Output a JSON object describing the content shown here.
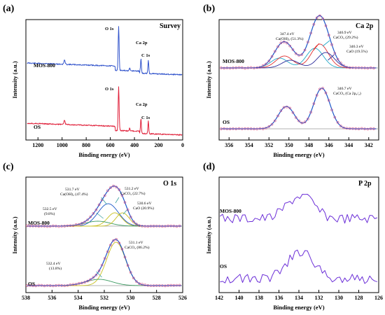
{
  "panels": [
    {
      "letter": "(a)",
      "title": "Survey",
      "xlabel": "Binding energy (eV)",
      "ylabel": "Intensity (a.u.)",
      "peak_labels": [
        "O 1s",
        "Ca 2p",
        "C 1s",
        "O 1s",
        "Ca 2p",
        "C 1s"
      ],
      "series_labels": [
        "MOS-800",
        "OS"
      ]
    },
    {
      "letter": "(b)",
      "title": "Ca 2p",
      "xlabel": "Binding energy (eV)",
      "ylabel": "Intensity (a.u.)",
      "annotations": [
        "347.4 eV",
        "Ca(OH)₂ (51.3%)",
        "346.9 eV",
        "CaCO₃ (29.2%)",
        "346.3 eV",
        "CaO (19.5%)",
        "346.7 eV",
        "CaCO₃ (Ca 2p₃/₂)"
      ],
      "series_labels": [
        "MOS-800",
        "OS"
      ]
    },
    {
      "letter": "(c)",
      "title": "O 1s",
      "xlabel": "Binding energy (eV)",
      "ylabel": "Intensity (a.u.)",
      "annotations": [
        "531.7 eV",
        "Ca(OH)₂ (47.4%)",
        "531.2 eV",
        "CaCO₃ (22.7%)",
        "532.5 eV",
        "(9.8%)",
        "530.6 eV",
        "CaO (20.9%)",
        "531.1 eV",
        "CaCO₃ (86.2%)",
        "532.4 eV",
        "(13.8%)"
      ],
      "series_labels": [
        "MOS-800",
        "OS"
      ]
    },
    {
      "letter": "(d)",
      "title": "P 2p",
      "xlabel": "Binding energy (eV)",
      "ylabel": "Intensity (a.u.)",
      "series_labels": [
        "MOS-800",
        "OS"
      ]
    }
  ],
  "colors": {
    "survey_mos": "#3355cc",
    "survey_os": "#e0203a",
    "raw_points": "#e05a8a",
    "envelope": "#1a56c8",
    "baseline": "#9a9a9a",
    "ca_oh": "#20a8c8",
    "caco3": "#e03030",
    "cao": "#2c2c9a",
    "o_extra": "#3a9a60",
    "o_caco3": "#c8c020",
    "p2p": "#6c2fd8"
  },
  "chart_data": [
    {
      "type": "line",
      "panel": "(a)",
      "title": "Survey",
      "xlabel": "Binding energy (eV)",
      "ylabel": "Intensity (a.u.)",
      "xlim": [
        1300,
        0
      ],
      "xticks": [
        1200,
        1000,
        800,
        600,
        400,
        200,
        0
      ],
      "series": [
        {
          "name": "MOS-800",
          "peaks_eV": [
            531,
            347,
            285
          ]
        },
        {
          "name": "OS",
          "peaks_eV": [
            531,
            347,
            285
          ]
        }
      ]
    },
    {
      "type": "line",
      "panel": "(b)",
      "title": "Ca 2p",
      "xlabel": "Binding energy (eV)",
      "ylabel": "Intensity (a.u.)",
      "xlim": [
        357,
        341
      ],
      "xticks": [
        356,
        354,
        352,
        350,
        348,
        346,
        344,
        342
      ],
      "series": [
        {
          "name": "MOS-800",
          "components": [
            {
              "label": "Ca(OH)2",
              "center_eV": 347.4,
              "percent": 51.3
            },
            {
              "label": "CaCO3",
              "center_eV": 346.9,
              "percent": 29.2
            },
            {
              "label": "CaO",
              "center_eV": 346.3,
              "percent": 19.5
            }
          ]
        },
        {
          "name": "OS",
          "components": [
            {
              "label": "CaCO3 (Ca 2p3/2)",
              "center_eV": 346.7
            }
          ]
        }
      ]
    },
    {
      "type": "line",
      "panel": "(c)",
      "title": "O 1s",
      "xlabel": "Binding energy (eV)",
      "ylabel": "Intensity (a.u.)",
      "xlim": [
        538,
        526
      ],
      "xticks": [
        538,
        536,
        534,
        532,
        530,
        528,
        526
      ],
      "series": [
        {
          "name": "MOS-800",
          "components": [
            {
              "label": "Ca(OH)2",
              "center_eV": 531.7,
              "percent": 47.4
            },
            {
              "label": "CaCO3",
              "center_eV": 531.2,
              "percent": 22.7
            },
            {
              "label": "",
              "center_eV": 532.5,
              "percent": 9.8
            },
            {
              "label": "CaO",
              "center_eV": 530.6,
              "percent": 20.9
            }
          ]
        },
        {
          "name": "OS",
          "components": [
            {
              "label": "CaCO3",
              "center_eV": 531.1,
              "percent": 86.2
            },
            {
              "label": "",
              "center_eV": 532.4,
              "percent": 13.8
            }
          ]
        }
      ]
    },
    {
      "type": "line",
      "panel": "(d)",
      "title": "P 2p",
      "xlabel": "Binding energy (eV)",
      "ylabel": "Intensity (a.u.)",
      "xlim": [
        142,
        126
      ],
      "xticks": [
        142,
        140,
        138,
        136,
        134,
        132,
        130,
        128,
        126
      ],
      "series": [
        {
          "name": "MOS-800",
          "peak_eV": 133.5
        },
        {
          "name": "OS",
          "peak_eV": 133.5
        }
      ]
    }
  ]
}
